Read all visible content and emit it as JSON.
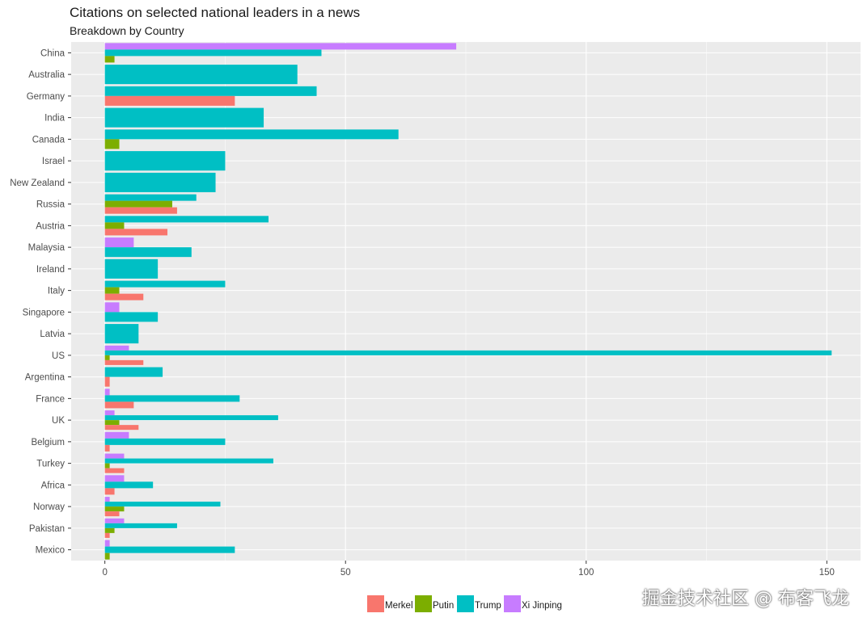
{
  "title": "Citations on selected national leaders in a news",
  "subtitle": "Breakdown by Country",
  "watermark": "掘金技术社区 @ 布客飞龙",
  "colors": {
    "Merkel": "#F8766D",
    "Putin": "#7CAE00",
    "Trump": "#00BFC4",
    "Xi Jinping": "#C77CFF",
    "panel": "#EBEBEB",
    "grid": "#FFFFFF"
  },
  "chart_data": {
    "type": "bar",
    "orientation": "horizontal",
    "position": "dodge",
    "title": "Citations on selected national leaders in a news",
    "subtitle": "Breakdown by Country",
    "xlabel": "",
    "ylabel": "",
    "xlim": [
      -7,
      157
    ],
    "x_ticks": [
      0,
      50,
      100,
      150
    ],
    "grid": true,
    "legend": "bottom",
    "legend_entries": [
      "Merkel",
      "Putin",
      "Trump",
      "Xi Jinping"
    ],
    "categories": [
      "China",
      "Australia",
      "Germany",
      "India",
      "Canada",
      "Israel",
      "New Zealand",
      "Russia",
      "Austria",
      "Malaysia",
      "Ireland",
      "Italy",
      "Singapore",
      "Latvia",
      "US",
      "Argentina",
      "France",
      "UK",
      "Belgium",
      "Turkey",
      "Africa",
      "Norway",
      "Pakistan",
      "Mexico"
    ],
    "series": [
      {
        "name": "Merkel",
        "values": [
          0,
          0,
          27,
          0,
          0,
          0,
          0,
          15,
          13,
          0,
          0,
          8,
          0,
          0,
          8,
          1,
          6,
          7,
          1,
          4,
          2,
          3,
          1,
          0
        ]
      },
      {
        "name": "Putin",
        "values": [
          2,
          0,
          0,
          0,
          3,
          0,
          0,
          14,
          4,
          0,
          0,
          3,
          0,
          0,
          1,
          0,
          0,
          3,
          0,
          1,
          0,
          4,
          2,
          1
        ]
      },
      {
        "name": "Trump",
        "values": [
          45,
          40,
          44,
          33,
          61,
          25,
          23,
          19,
          34,
          18,
          11,
          25,
          11,
          7,
          151,
          12,
          28,
          36,
          25,
          35,
          10,
          24,
          15,
          27
        ]
      },
      {
        "name": "Xi Jinping",
        "values": [
          73,
          0,
          0,
          0,
          0,
          0,
          0,
          0,
          0,
          6,
          0,
          0,
          3,
          0,
          5,
          0,
          1,
          2,
          5,
          4,
          4,
          1,
          4,
          1
        ]
      }
    ]
  }
}
